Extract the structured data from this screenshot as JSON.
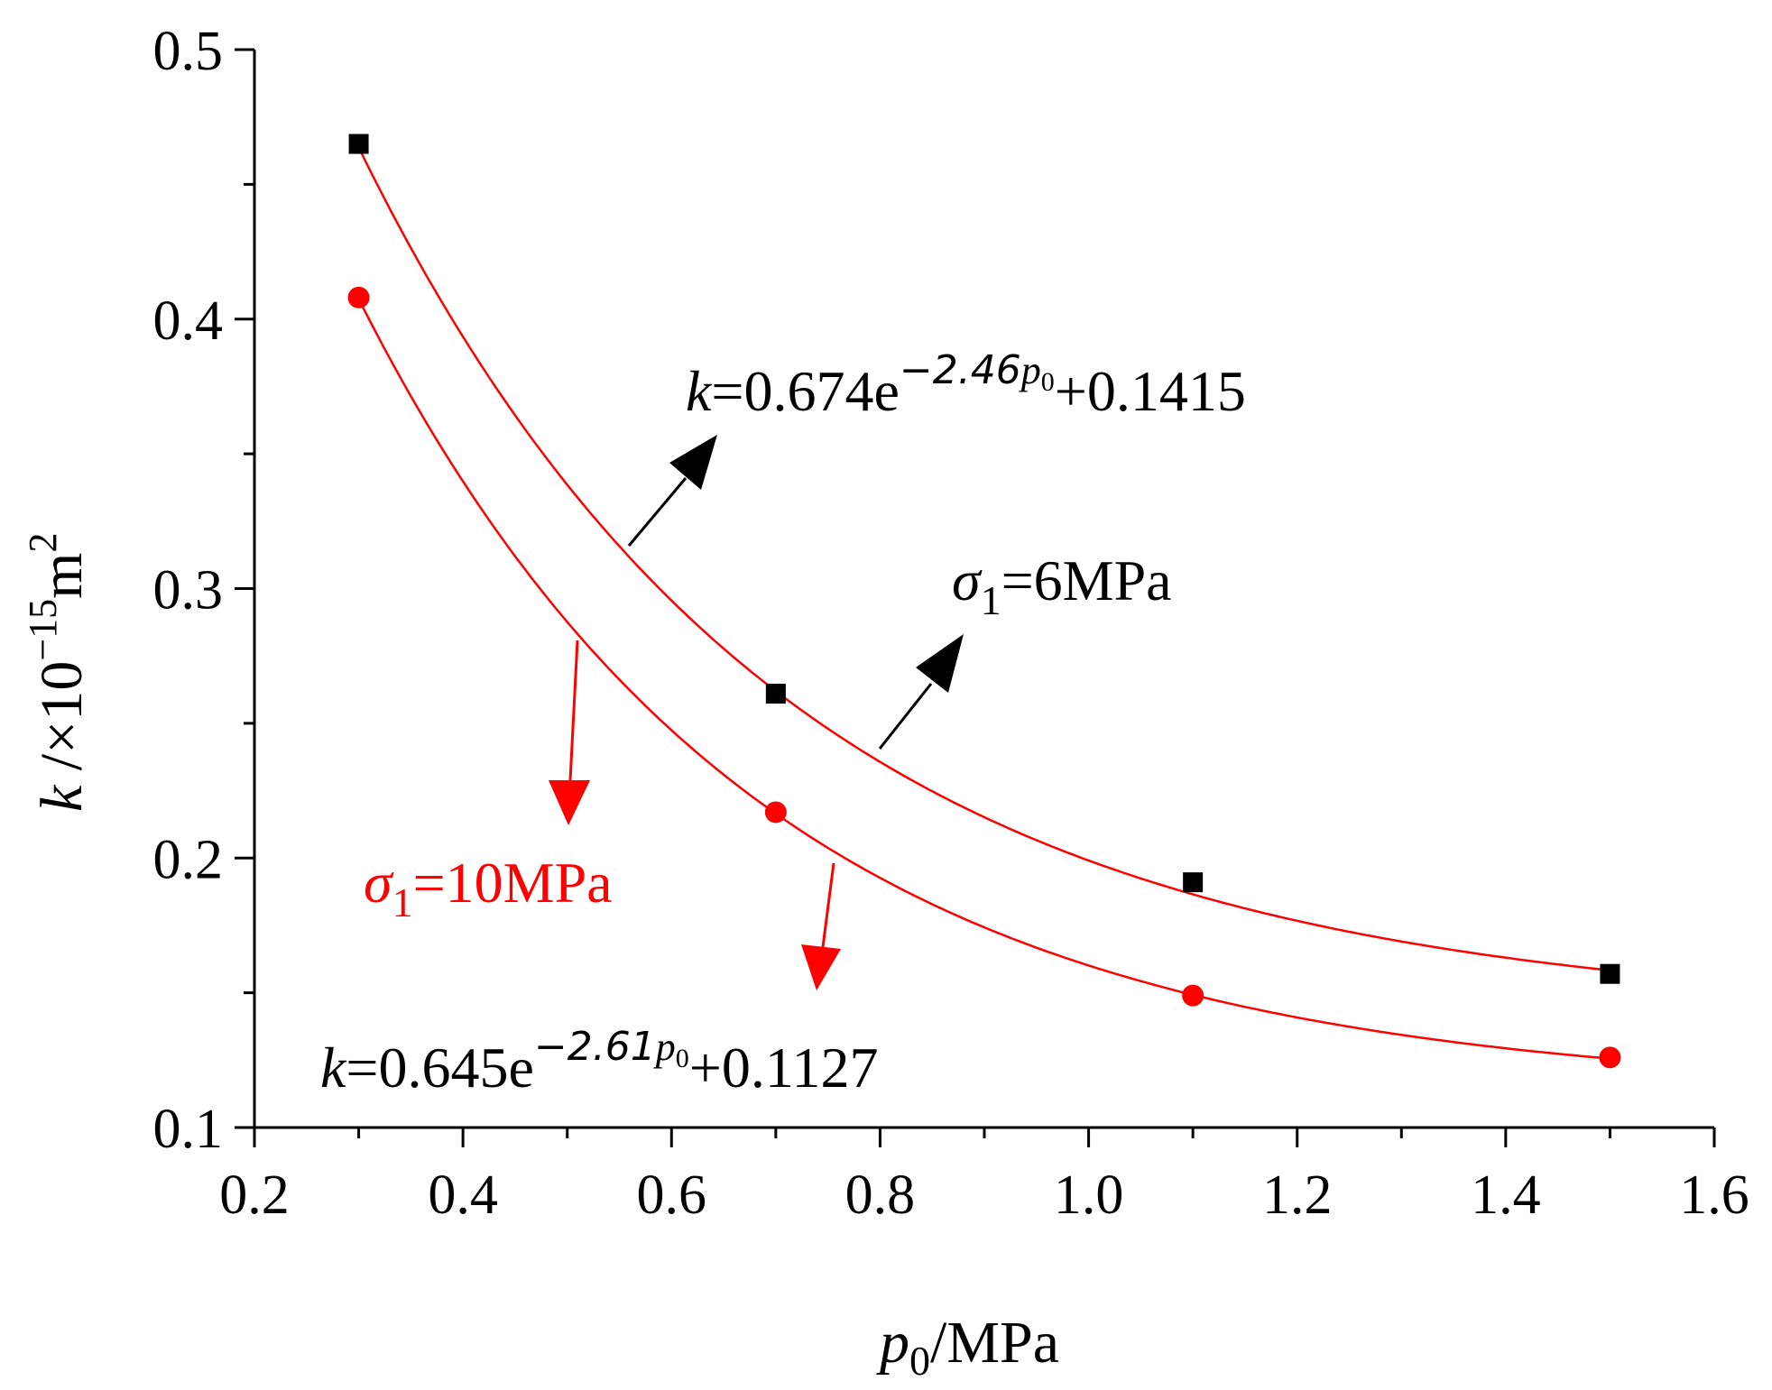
{
  "chart_data": {
    "type": "scatter",
    "xlim": [
      0.2,
      1.6
    ],
    "ylim": [
      0.1,
      0.5
    ],
    "x_ticks": [
      "0.2",
      "0.4",
      "0.6",
      "0.8",
      "1.0",
      "1.2",
      "1.4",
      "1.6"
    ],
    "y_ticks": [
      "0.1",
      "0.2",
      "0.3",
      "0.4",
      "0.5"
    ],
    "xlabel": {
      "var": "p",
      "sub": "0",
      "unit": "/MPa"
    },
    "ylabel": {
      "var": "k",
      "rest": " /×10",
      "exp": "−15",
      "unit": "m",
      "unit_exp": "2"
    },
    "series": [
      {
        "name": "σ1=6MPa",
        "marker": "square",
        "color": "#000000",
        "fit_color": "#ff0000",
        "x": [
          0.3,
          0.7,
          1.1,
          1.5
        ],
        "y": [
          0.465,
          0.261,
          0.191,
          0.157
        ],
        "fit": {
          "a": 0.674,
          "b": 2.46,
          "c": 0.1415
        }
      },
      {
        "name": "σ1=10MPa",
        "marker": "circle",
        "color": "#ff0000",
        "fit_color": "#ff0000",
        "x": [
          0.3,
          0.7,
          1.1,
          1.5
        ],
        "y": [
          0.408,
          0.217,
          0.149,
          0.126
        ],
        "fit": {
          "a": 0.645,
          "b": 2.61,
          "c": 0.1127
        }
      }
    ],
    "annotations": {
      "eq1": {
        "k": "k",
        "mid": "=0.674e",
        "exp_num": "−2.46",
        "exp_var": "p",
        "exp_sub": "0",
        "tail": "+0.1415"
      },
      "eq2": {
        "k": "k",
        "mid": "=0.645e",
        "exp_num": "−2.61",
        "exp_var": "p",
        "exp_sub": "0",
        "tail": "+0.1127"
      },
      "label1": {
        "sigma": "σ",
        "sub": "1",
        "rest": "=6MPa"
      },
      "label2": {
        "sigma": "σ",
        "sub": "1",
        "rest": "=10MPa"
      }
    },
    "colors": {
      "accent": "#ff0000",
      "axis": "#000000"
    }
  }
}
